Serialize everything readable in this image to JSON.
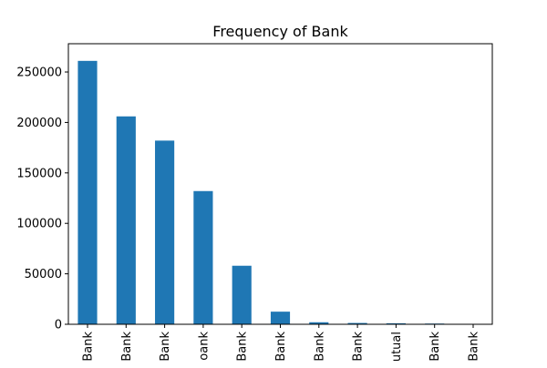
{
  "chart_data": {
    "type": "bar",
    "title": "Frequency of Bank",
    "xlabel": "",
    "ylabel": "",
    "categories": [
      "Bank",
      "Bank",
      "Bank",
      "oank",
      "Bank",
      "Bank",
      "Bank",
      "Bank",
      "utual",
      "Bank",
      "Bank"
    ],
    "values": [
      261000,
      206000,
      182000,
      132000,
      58000,
      12500,
      2000,
      1300,
      1000,
      700,
      300
    ],
    "ylim": [
      0,
      278000
    ],
    "yticks": [
      0,
      50000,
      100000,
      150000,
      200000,
      250000
    ],
    "ytick_labels": [
      "0",
      "50000",
      "100000",
      "150000",
      "200000",
      "250000"
    ],
    "bar_color": "#1f77b4",
    "grid": false,
    "legend": "none"
  }
}
